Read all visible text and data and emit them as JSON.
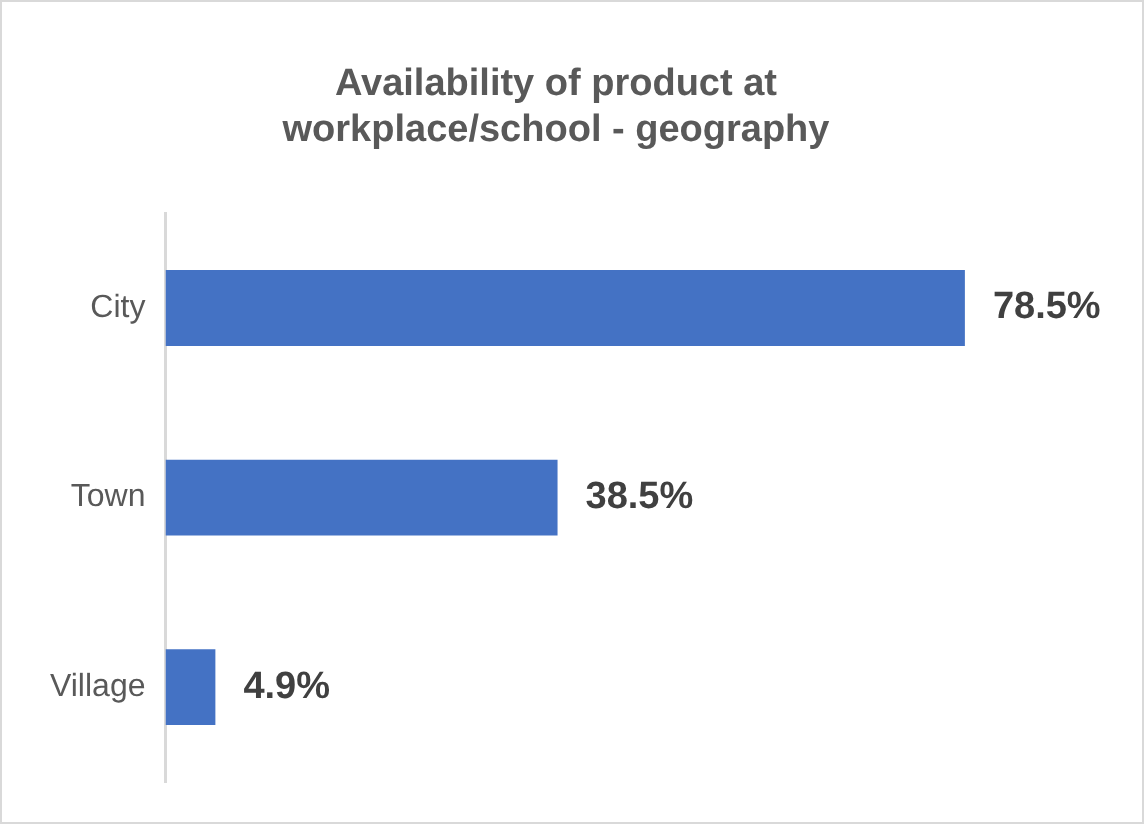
{
  "chart_data": {
    "type": "bar",
    "orientation": "horizontal",
    "title": "Availability of product at workplace/school - geography",
    "categories": [
      "City",
      "Town",
      "Village"
    ],
    "values": [
      78.5,
      38.5,
      4.9
    ],
    "color": "#4472c4",
    "value_labels": [
      "78.5%",
      "38.5%",
      "4.9%"
    ],
    "tick_labels": "y",
    "grid": false,
    "legend": false
  }
}
